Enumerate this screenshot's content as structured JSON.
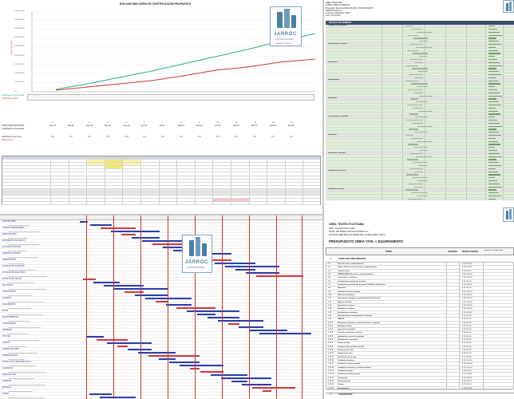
{
  "chart_panel": {
    "title": "BOLIVAR 888 CURVA DE CERTIFICACION PROPUESTA",
    "logo_name": "JARROC",
    "logo_sub": "CONSTRUCCIONES",
    "logo_url": "www.jarroc.com.ar",
    "y_ticks": [
      "$ 45.000.000",
      "$ 40.000.000",
      "$ 35.000.000",
      "$ 30.000.000",
      "$ 25.000.000",
      "$ 20.000.000",
      "$ 15.000.000",
      "$ 10.000.000",
      "$ 5.000.000",
      "$ 0"
    ],
    "row_labels": [
      "LINEA CERTIFICACION",
      "Certificacion Proyectada",
      "Certificacion Real",
      "Certificacion por mes",
      "Diferencia %"
    ],
    "months": [
      "ene-21",
      "feb-21",
      "mar-21",
      "abr-21",
      "may-21",
      "jun-21",
      "jul-21",
      "ago-21",
      "sep-21",
      "oct-21",
      "nov-21",
      "dic-21",
      "ene-22",
      "feb-22"
    ],
    "month_numbers": [
      "1",
      "2",
      "3",
      "4",
      "5",
      "6",
      "7",
      "8",
      "9",
      "10",
      "11",
      "12",
      "13",
      "14"
    ],
    "pct_values": [
      "9%",
      "9%",
      "9%",
      "15%",
      "13%",
      "9%",
      "5%",
      "5%",
      "9%",
      "8%",
      "9%",
      "5%",
      "3%",
      "1%"
    ]
  },
  "budget_panel": {
    "header_lines": [
      "OBRA: Bolivar 888",
      "RUBRO: OBRA COMPLETA",
      "Propietario: Direccion 3230-883 ARQ. OSCAR PUERTO",
      "CERTIFICADO N1",
      "Fecha de certificacion: 30/04",
      "Asoc. 25 de 2021"
    ],
    "table_header": "DETALLE DE RUBROS",
    "rows": [
      "Trabajos Preliminares",
      "Movimiento de suelos",
      "Estructura",
      "Mamposteria",
      "Revoques",
      "Contrapisos y carpetas",
      "Cubiertas",
      "Instalacion Sanitaria",
      "Instalacion electrica",
      "Instalacion de gas",
      "Yeseria",
      "Pisos y revestimientos",
      "Carpinteria",
      "Pintura",
      "Vidrios",
      "Varios",
      "Limpieza",
      "Total"
    ]
  },
  "gantt_panel": {
    "logo_name": "JARROC",
    "logo_sub": "CONSTRUCCIONES",
    "tasks": [
      "PLAN DE OBRA",
      "TAREAS PRELIMINARES",
      "DEMOLICIONES",
      "MOVIMIENTO DE SUELOS",
      "EXCAVACION BASES",
      "HORMIGON ARMADO",
      "MAMPOSTERIA",
      "INSTALACION SANITARIA",
      "INSTALACION ELECTRICA",
      "INSTALACION DE GAS",
      "REVOQUES",
      "CONTRAPISOS",
      "CUBIERTA",
      "CIELORRASOS",
      "PISOS",
      "REVESTIMIENTOS",
      "CARPINTERIAS",
      "HERRERIA",
      "PINTURA",
      "VIDRIOS",
      "LIMPIEZA DE OBRA",
      "TERMINACIONES",
      "INSTALACION TERMOMECANICA",
      "ASCENSOR",
      "PARQUIZACION",
      "MUEBLES",
      "ENTREGA",
      "OTROS"
    ]
  },
  "pres_panel": {
    "lines": [
      "OBRA: TEATRO POLITEAMA",
      "DIRC. PALADINI 250, CABA",
      "PROP: DIB BAÑES PRODUCCIONES S.A.",
      "ESTUDIO ABELMAN GILLERDE SNT. Alt-Plas OESG OMAS"
    ],
    "title": "PRESUPUESTO  OBRA CIVIL + EQUIPAMIENTO",
    "col_item": "ITEMS",
    "col_qty": "CANTIDAD",
    "col_unit": "PRECIO UNITARIO",
    "col_total": "PRECIO TOTAL S/IVA",
    "section1_num": "1",
    "section1": "TRABAJOS PRELIMINARES",
    "items": [
      {
        "n": "1.1",
        "d": "Cerco de obra y mantenimiento",
        "p": "$ 450.000,00"
      },
      {
        "n": "1.2",
        "d": "Vallas, defensas y protecciones reglamentarias",
        "p": "$ 230.000,00"
      },
      {
        "n": "1.3",
        "d": "Cartel de obra",
        "p": "$ 35.000,00"
      },
      {
        "n": "1.4",
        "d": "OBRADORES: Ejecucion y mantenimiento",
        "p": "$ 320.000,00"
      },
      {
        "n": "1.5",
        "d": "Conexiones a servicios",
        "p": "$ 180.000,00"
      },
      {
        "n": "1.6",
        "d": "Instalaciones provisorias de agua",
        "p": "$ 95.000,00"
      },
      {
        "n": "1.7",
        "d": "Instalaciones provisorias de agua, P. Abrilla a Iluminacion",
        "p": "$ 140.000,00"
      },
      {
        "n": "1.8",
        "d": "Replanteo",
        "p": "$ 60.000,00"
      },
      {
        "n": "1.9",
        "d": "Limpieza de obra periodica",
        "p": "$ 120.000,00"
      },
      {
        "n": "1.10",
        "d": "Retiro de escombros",
        "p": "$ 210.000,00"
      },
      {
        "n": "1.11",
        "d": "Direccion de trabajos y mantenimiento del personal",
        "p": "$ 380.000,00"
      },
      {
        "n": "1.12",
        "d": "Seguros de obra",
        "p": "$ 150.000,00"
      },
      {
        "n": "1.13",
        "d": "Honorarios tecnicos",
        "p": "$ 420.000,00"
      },
      {
        "n": "1.14",
        "d": "Andamios y equipos",
        "p": "$ 260.000,00"
      },
      {
        "n": "1.15",
        "d": "Demoliciones interiores",
        "p": "$ 310.000,00"
      },
      {
        "n": "1.16",
        "d": "Relevamiento de instalaciones existentes",
        "p": "$ 75.000,00"
      },
      {
        "n": "1.17",
        "d": "VARIOS",
        "p": "$ 90.000,00"
      },
      {
        "n": "1.17.1",
        "d": "Remocion, retencion y reubicacion de los registros",
        "p": "$ 48.000,00"
      },
      {
        "n": "1.17.2",
        "d": "Arbitraje de obra",
        "p": "$ 32.000,00"
      },
      {
        "n": "1.17.3",
        "d": "Ingreso de materiales",
        "p": "$ 24.000,00"
      },
      {
        "n": "1.17.4",
        "d": "Control y supervision tecnica",
        "p": "$ 56.000,00"
      },
      {
        "n": "1.17.5",
        "d": "Aprobacion y antes de entregas",
        "p": "$ 18.000,00"
      },
      {
        "n": "1.17.6",
        "d": "Senalizacion y cartelera",
        "p": "$ 22.000,00"
      },
      {
        "n": "1.17.7",
        "d": "Puesta de obra",
        "p": "$ 65.000,00"
      },
      {
        "n": "1.17.8",
        "d": "Limpieza final y perfiles de obra",
        "p": "$ 40.000,00"
      },
      {
        "n": "1.17.9",
        "d": "Proteccion de obra",
        "p": "$ 36.000,00"
      },
      {
        "n": "1.17.10",
        "d": "Vigilancia de obra",
        "p": "$ 88.000,00"
      },
      {
        "n": "1.17.11",
        "d": "Verificacion de fiscalia",
        "p": "$ 12.000,00"
      },
      {
        "n": "1.17.12",
        "d": "Instalacion sanitaria",
        "p": "$ 145.000,00"
      },
      {
        "n": "1.17.13",
        "d": "Instalacion contra incendio",
        "p": "$ 132.000,00"
      },
      {
        "n": "1.17.14",
        "d": "Instalacion electrica y corrientes debiles",
        "p": "$ 210.000,00"
      },
      {
        "n": "1.17.15",
        "d": "Instalacion de gas",
        "p": "$ 64.000,00"
      },
      {
        "n": "1.17.16",
        "d": "Instalacion termomecanica",
        "p": "$ 175.000,00"
      },
      {
        "n": "1.17.17",
        "d": "Carpinterias",
        "p": "$ 190.000,00"
      },
      {
        "n": "1.17.18",
        "d": "Revestimientos",
        "p": "$ 84.000,00"
      },
      {
        "n": "1.17.19",
        "d": "Pintura",
        "p": "$ 72.000,00"
      },
      {
        "n": "1.17.20",
        "d": "Equipamiento",
        "p": "$ 230.000,00"
      }
    ],
    "section2_num": "2",
    "section2": "ALBAÑILERIA"
  }
}
